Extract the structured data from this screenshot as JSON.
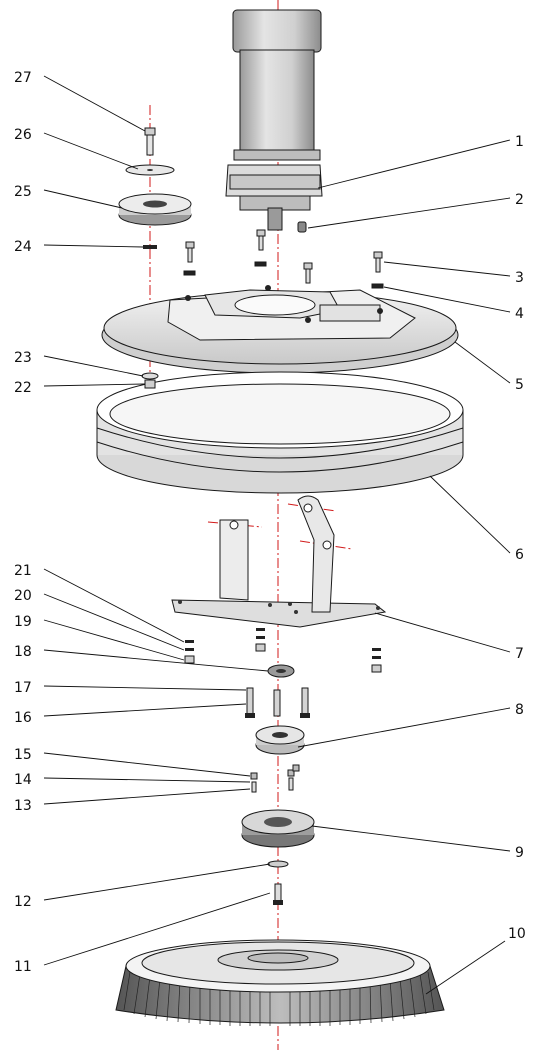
{
  "diagram": {
    "callouts": [
      "1",
      "2",
      "3",
      "4",
      "5",
      "6",
      "7",
      "8",
      "9",
      "10",
      "11",
      "12",
      "13",
      "14",
      "15",
      "16",
      "17",
      "18",
      "19",
      "20",
      "21",
      "22",
      "23",
      "24",
      "25",
      "26",
      "27"
    ],
    "colors": {
      "centerline": "#d11a1a",
      "outline": "#1a1a1a",
      "light_fill": "#eeeeee",
      "mid_fill": "#cfcfcf",
      "dark_fill": "#2e2e2e"
    }
  }
}
